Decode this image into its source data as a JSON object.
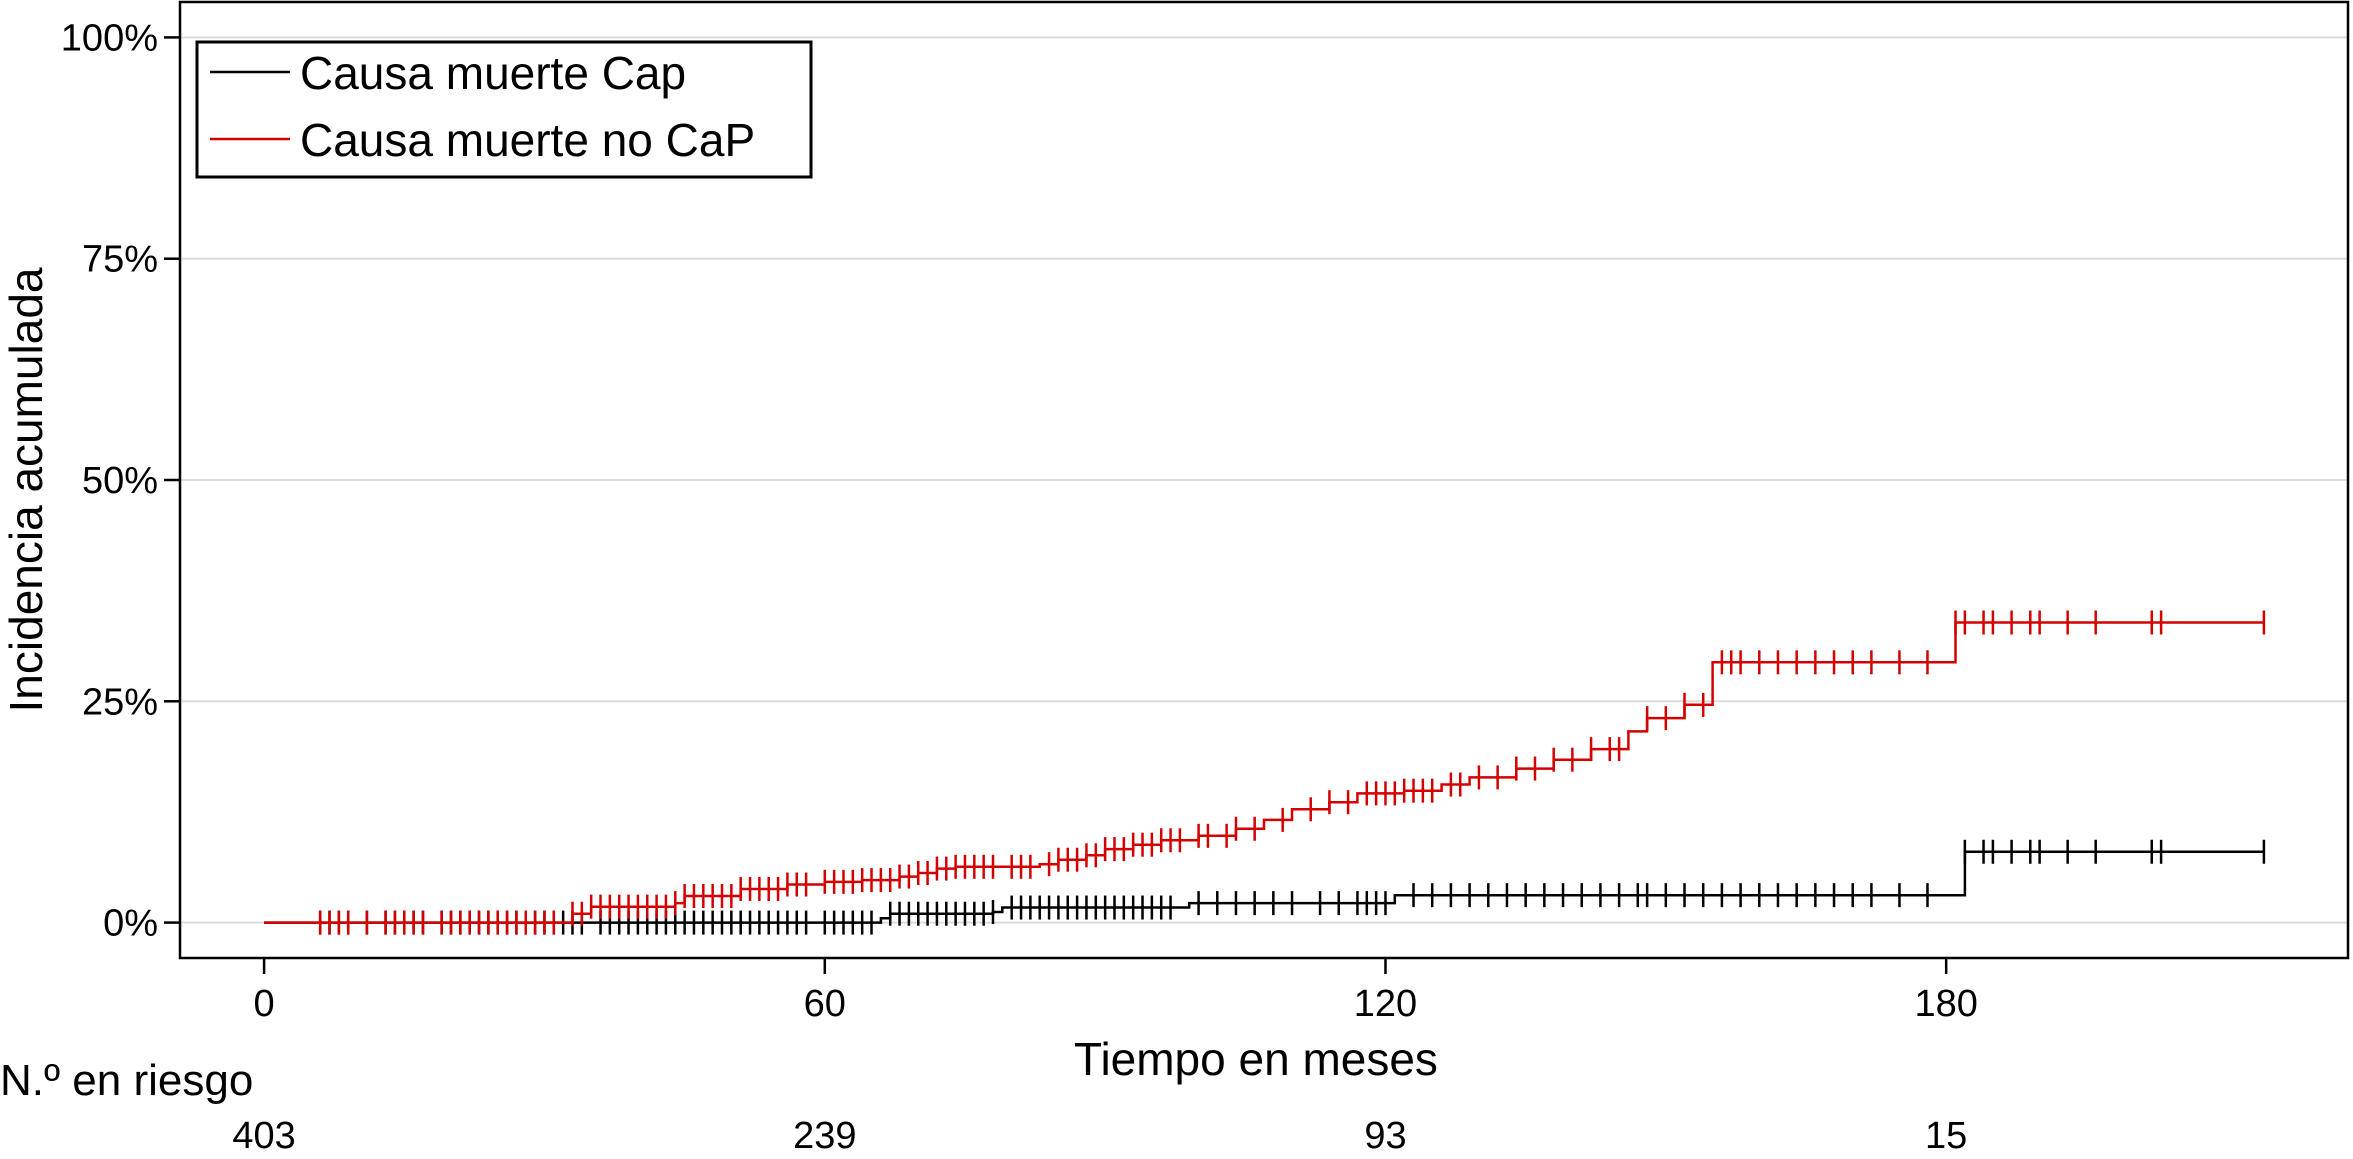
{
  "chart_data": {
    "type": "line",
    "subtype": "cumulative-incidence-step",
    "xlabel": "Tiempo en meses",
    "ylabel": "Incidencia acumulada",
    "xlim": [
      -9,
      223
    ],
    "ylim": [
      -4,
      104
    ],
    "x_ticks": [
      0,
      60,
      120,
      180
    ],
    "y_ticks": [
      0,
      25,
      50,
      75,
      100
    ],
    "y_tick_labels": [
      "0%",
      "25%",
      "50%",
      "75%",
      "100%"
    ],
    "grid": "horizontal",
    "legend_position": "top-left",
    "legend": [
      {
        "label": "Causa muerte Cap",
        "color": "#000000"
      },
      {
        "label": "Causa muerte no CaP",
        "color": "#d40000"
      }
    ],
    "series": [
      {
        "name": "Causa muerte Cap",
        "color": "#000000",
        "steps": [
          [
            0,
            0
          ],
          [
            65,
            0
          ],
          [
            66,
            0.5
          ],
          [
            67,
            1
          ],
          [
            78,
            1.2
          ],
          [
            79,
            1.7
          ],
          [
            98,
            1.7
          ],
          [
            99,
            2.2
          ],
          [
            120,
            2.2
          ],
          [
            121,
            3.1
          ],
          [
            181,
            3.1
          ],
          [
            182,
            8
          ],
          [
            214,
            8
          ]
        ],
        "censor_times": [
          6,
          7,
          8,
          9,
          11,
          13,
          14,
          15,
          16,
          17,
          19,
          20,
          21,
          22,
          23,
          24,
          25,
          26,
          27,
          28,
          29,
          30,
          31,
          32,
          33,
          34,
          36,
          37,
          38,
          39,
          40,
          41,
          42,
          43,
          44,
          45,
          46,
          47,
          48,
          49,
          50,
          51,
          52,
          53,
          54,
          55,
          56,
          57,
          58,
          60,
          61,
          62,
          63,
          64,
          65,
          67,
          68,
          69,
          70,
          71,
          72,
          73,
          74,
          75,
          76,
          77,
          78,
          80,
          81,
          82,
          83,
          84,
          85,
          86,
          87,
          88,
          89,
          90,
          91,
          92,
          93,
          94,
          95,
          96,
          97,
          100,
          102,
          104,
          106,
          108,
          110,
          113,
          115,
          117,
          118,
          119,
          120,
          123,
          125,
          127,
          129,
          131,
          133,
          135,
          137,
          139,
          141,
          143,
          145,
          147,
          148,
          150,
          152,
          154,
          156,
          158,
          160,
          162,
          164,
          166,
          168,
          170,
          172,
          175,
          178,
          182,
          184,
          185,
          187,
          189,
          190,
          193,
          196,
          202,
          203,
          214
        ]
      },
      {
        "name": "Causa muerte no CaP",
        "color": "#d40000",
        "steps": [
          [
            0,
            0
          ],
          [
            32,
            0
          ],
          [
            33,
            1
          ],
          [
            35,
            1.8
          ],
          [
            44,
            2.2
          ],
          [
            45,
            3
          ],
          [
            50,
            3
          ],
          [
            51,
            3.8
          ],
          [
            55,
            3.8
          ],
          [
            56,
            4.3
          ],
          [
            60,
            4.6
          ],
          [
            64,
            4.8
          ],
          [
            68,
            5.2
          ],
          [
            70,
            5.6
          ],
          [
            72,
            6.1
          ],
          [
            74,
            6.3
          ],
          [
            83,
            6.6
          ],
          [
            85,
            7.1
          ],
          [
            88,
            7.6
          ],
          [
            90,
            8.3
          ],
          [
            93,
            8.8
          ],
          [
            96,
            9.3
          ],
          [
            100,
            9.8
          ],
          [
            104,
            10.6
          ],
          [
            107,
            11.6
          ],
          [
            110,
            12.8
          ],
          [
            114,
            13.6
          ],
          [
            117,
            14.6
          ],
          [
            122,
            14.9
          ],
          [
            126,
            15.6
          ],
          [
            129,
            16.4
          ],
          [
            134,
            17.4
          ],
          [
            138,
            18.4
          ],
          [
            142,
            19.6
          ],
          [
            146,
            21.6
          ],
          [
            148,
            23.1
          ],
          [
            152,
            24.6
          ],
          [
            155,
            29.4
          ],
          [
            180,
            29.4
          ],
          [
            181,
            33.9
          ],
          [
            214,
            33.9
          ]
        ],
        "censor_times": [
          6,
          7,
          8,
          9,
          11,
          13,
          14,
          15,
          16,
          17,
          19,
          20,
          21,
          22,
          23,
          24,
          25,
          26,
          27,
          28,
          29,
          30,
          31,
          33,
          34,
          35,
          36,
          37,
          38,
          39,
          40,
          41,
          42,
          43,
          44,
          45,
          46,
          47,
          48,
          49,
          50,
          51,
          52,
          53,
          54,
          55,
          56,
          57,
          58,
          60,
          61,
          62,
          63,
          64,
          65,
          66,
          67,
          68,
          69,
          70,
          71,
          72,
          73,
          74,
          75,
          76,
          77,
          78,
          80,
          81,
          82,
          84,
          85,
          86,
          87,
          88,
          89,
          90,
          91,
          92,
          93,
          94,
          95,
          96,
          97,
          98,
          100,
          101,
          103,
          104,
          106,
          109,
          112,
          114,
          116,
          118,
          119,
          120,
          121,
          122,
          123,
          124,
          125,
          127,
          128,
          130,
          132,
          134,
          136,
          138,
          140,
          142,
          144,
          145,
          148,
          150,
          152,
          154,
          156,
          157,
          158,
          160,
          162,
          164,
          166,
          168,
          170,
          172,
          175,
          178,
          181,
          182,
          184,
          185,
          187,
          189,
          190,
          193,
          196,
          202,
          203,
          214
        ]
      }
    ],
    "risk_table": {
      "title": "N.º en riesgo",
      "times": [
        0,
        60,
        120,
        180
      ],
      "values": [
        "403",
        "239",
        "93",
        "15"
      ]
    }
  }
}
